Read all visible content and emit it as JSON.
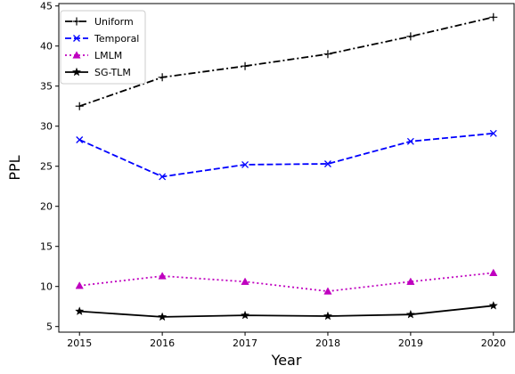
{
  "chart_data": {
    "type": "line",
    "title": "",
    "xlabel": "Year",
    "ylabel": "PPL",
    "x": [
      "2015",
      "2016",
      "2017",
      "2018",
      "2019",
      "2020"
    ],
    "xlim": [
      2014.75,
      2020.25
    ],
    "ylim": [
      4.3,
      45.3
    ],
    "yticks": [
      5,
      10,
      15,
      20,
      25,
      30,
      35,
      40,
      45
    ],
    "grid": false,
    "legend_position": "top-left",
    "series": [
      {
        "name": "Uniform",
        "values": [
          32.5,
          36.1,
          37.5,
          39.0,
          41.2,
          43.6
        ],
        "color": "#000000",
        "line_style": "dash-dot",
        "marker": "plus"
      },
      {
        "name": "Temporal",
        "values": [
          28.3,
          23.7,
          25.2,
          25.3,
          28.1,
          29.1
        ],
        "color": "#0000ff",
        "line_style": "dashed",
        "marker": "x"
      },
      {
        "name": "LMLM",
        "values": [
          10.1,
          11.3,
          10.6,
          9.4,
          10.6,
          11.7
        ],
        "color": "#bf00bf",
        "line_style": "dotted",
        "marker": "triangle"
      },
      {
        "name": "SG-TLM",
        "values": [
          6.9,
          6.2,
          6.4,
          6.3,
          6.5,
          7.6
        ],
        "color": "#000000",
        "line_style": "solid",
        "marker": "star"
      }
    ]
  }
}
